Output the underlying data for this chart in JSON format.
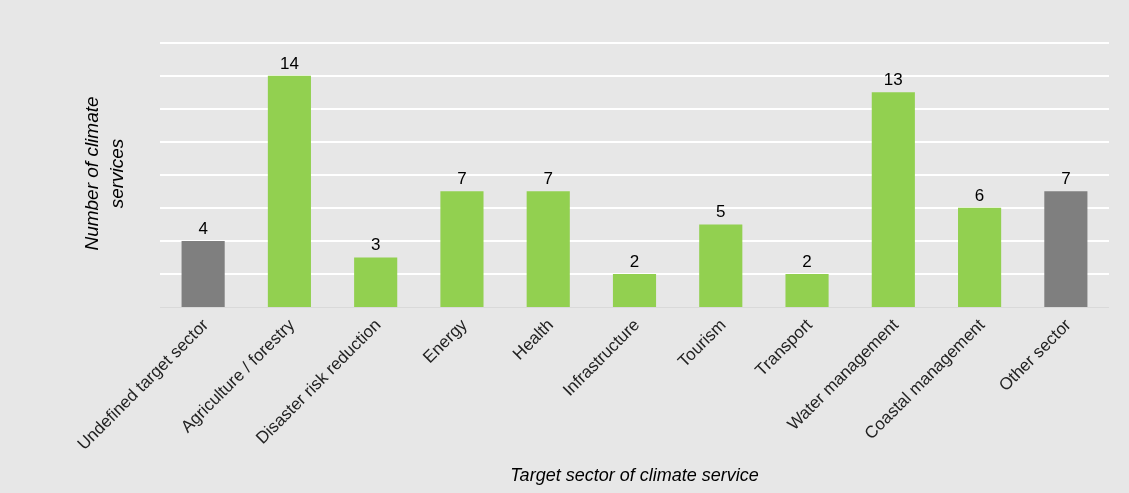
{
  "chart_data": {
    "type": "bar",
    "xlabel": "Target sector of climate service",
    "ylabel": "Number of climate services",
    "categories": [
      "Undefined target sector",
      "Agriculture / forestry",
      "Disaster risk reduction",
      "Energy",
      "Health",
      "Infrastructure",
      "Tourism",
      "Transport",
      "Water management",
      "Coastal management",
      "Other sector"
    ],
    "values": [
      4,
      14,
      3,
      7,
      7,
      2,
      5,
      2,
      13,
      6,
      7
    ],
    "colors": [
      "#7f7f7f",
      "#92d050",
      "#92d050",
      "#92d050",
      "#92d050",
      "#92d050",
      "#92d050",
      "#92d050",
      "#92d050",
      "#92d050",
      "#7f7f7f"
    ],
    "yticks": [
      {
        "value": 0,
        "label": null
      },
      {
        "value": 2,
        "label": null
      },
      {
        "value": 4,
        "label": null
      },
      {
        "value": 6,
        "label": null
      },
      {
        "value": 8,
        "label": null
      },
      {
        "value": 10,
        "label": null
      },
      {
        "value": 12,
        "label": null
      },
      {
        "value": 14,
        "label": null
      },
      {
        "value": 16,
        "label": null
      }
    ],
    "grid": "y",
    "tick_labels": "x",
    "data_labels": true
  }
}
